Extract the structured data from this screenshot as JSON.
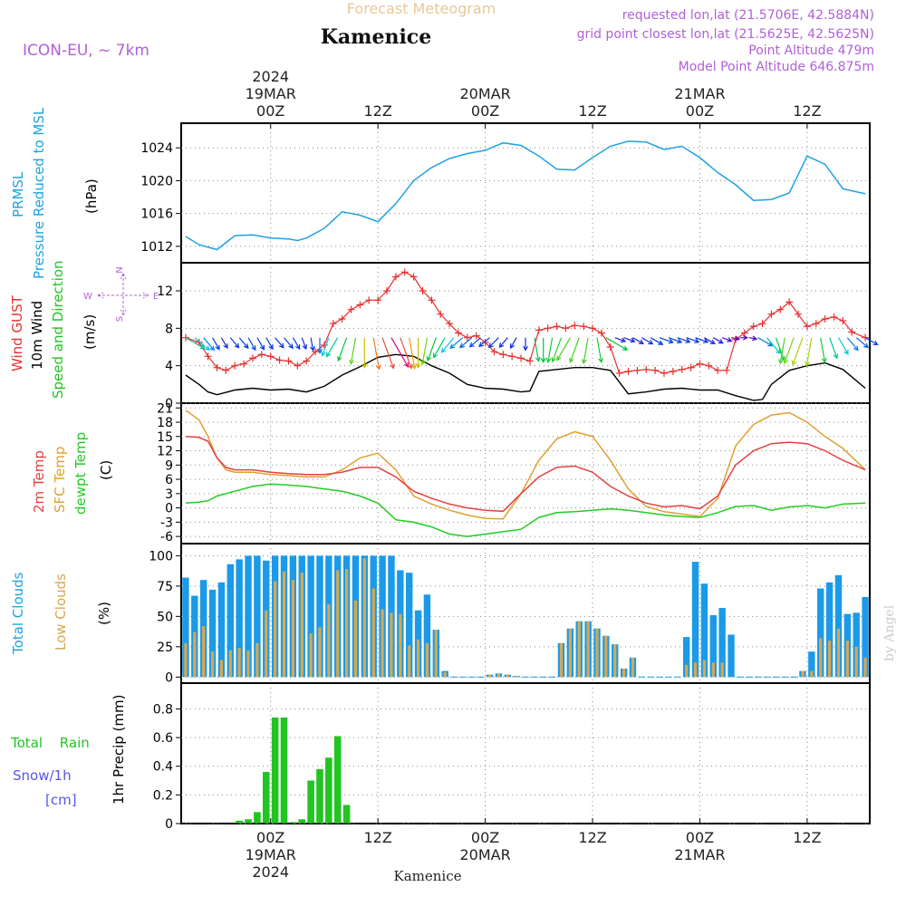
{
  "header": {
    "title": "Kamenice",
    "subtitle": "Forecast Meteogram",
    "model": "ICON-EU, ~ 7km",
    "requested": "requested lon,lat (21.5706E, 42.5884N)",
    "gridpoint": "grid point closest lon,lat (21.5625E, 42.5625N)",
    "point_alt": "Point Altitude 479m",
    "model_alt": "Model Point Altitude 646.875m",
    "footer": "Kamenice",
    "watermark": "by Angel"
  },
  "colors": {
    "pressure": "#1fa2e0",
    "gust": "#e83030",
    "wind10": "#000000",
    "t2m": "#e84040",
    "sfc": "#e0a030",
    "dewpt": "#22cc22",
    "total_cloud": "#1a9ae8",
    "low_cloud": "#d8a850",
    "rain": "#22c422",
    "snow": "#5555ee",
    "purple": "#b060d8"
  },
  "time_axis": {
    "top_labels": [
      {
        "hour": 0,
        "lines": [
          "2024",
          "19MAR",
          "00Z"
        ]
      },
      {
        "hour": 12,
        "lines": [
          "12Z"
        ]
      },
      {
        "hour": 24,
        "lines": [
          "20MAR",
          "00Z"
        ]
      },
      {
        "hour": 36,
        "lines": [
          "12Z"
        ]
      },
      {
        "hour": 48,
        "lines": [
          "21MAR",
          "00Z"
        ]
      },
      {
        "hour": 60,
        "lines": [
          "12Z"
        ]
      }
    ],
    "bottom_labels": [
      {
        "hour": 0,
        "lines": [
          "00Z",
          "19MAR",
          "2024"
        ]
      },
      {
        "hour": 12,
        "lines": [
          "12Z"
        ]
      },
      {
        "hour": 24,
        "lines": [
          "00Z",
          "20MAR"
        ]
      },
      {
        "hour": 36,
        "lines": [
          "12Z"
        ]
      },
      {
        "hour": 48,
        "lines": [
          "00Z",
          "21MAR"
        ]
      },
      {
        "hour": 60,
        "lines": [
          "12Z"
        ]
      }
    ]
  },
  "panels": {
    "pressure": {
      "labels": [
        "PRMSL",
        "Pressure Reduced to MSL"
      ],
      "unit": "(hPa)",
      "ticks": [
        "1012",
        "1016",
        "1020",
        "1024"
      ]
    },
    "wind": {
      "label_gust": "Wind GUST",
      "label_10m": "10m Wind",
      "label_speed": "Speed and Direction",
      "unit": "(m/s)",
      "ticks": [
        "0",
        "4",
        "8",
        "12"
      ],
      "compass_n": "N",
      "compass_s": "S",
      "compass_w": "W",
      "compass_e": "E"
    },
    "temp": {
      "label_2m": "2m Temp",
      "label_sfc": "SFC Temp",
      "label_dewpt": "dewpt Temp",
      "unit": "(C)",
      "ticks": [
        "-6",
        "-3",
        "0",
        "3",
        "6",
        "9",
        "12",
        "15",
        "18",
        "21"
      ]
    },
    "clouds": {
      "label_total": "Total Clouds",
      "label_low": "Low Clouds",
      "unit": "(%)",
      "ticks": [
        "0",
        "25",
        "50",
        "75",
        "100"
      ]
    },
    "precip": {
      "label_rain": "Total Rain",
      "label_snow": "Snow/1h",
      "label_cm": "[cm]",
      "unit": "1hr Precip (mm)",
      "ticks": [
        "0",
        "0.2",
        "0.4",
        "0.6",
        "0.8"
      ]
    }
  },
  "chart_data": [
    {
      "type": "line",
      "name": "PRMSL",
      "ylim": [
        1010,
        1027
      ],
      "x": [
        -9.5,
        -8,
        -6,
        -4,
        -2,
        0,
        2,
        3,
        4,
        6,
        8,
        10,
        12,
        14,
        16,
        18,
        20,
        22,
        24,
        26,
        28,
        30,
        32,
        34,
        36,
        38,
        40,
        42,
        44,
        46,
        48,
        50,
        52,
        54,
        56,
        58,
        60,
        62,
        64,
        66.5
      ],
      "values": [
        1013.2,
        1012.2,
        1011.6,
        1013.3,
        1013.4,
        1013.0,
        1012.9,
        1012.7,
        1013.0,
        1014.2,
        1016.2,
        1015.8,
        1015.0,
        1017.2,
        1020.0,
        1021.6,
        1022.7,
        1023.3,
        1023.7,
        1024.6,
        1024.3,
        1023.0,
        1021.4,
        1021.3,
        1022.8,
        1024.2,
        1024.8,
        1024.7,
        1023.8,
        1024.2,
        1022.8,
        1021.0,
        1019.5,
        1017.6,
        1017.7,
        1018.5,
        1023.0,
        1022.0,
        1019.0,
        1018.4
      ]
    },
    {
      "type": "line",
      "name": "Wind GUST",
      "ylim": [
        0,
        15
      ],
      "x": [
        -9.5,
        -8,
        -7,
        -6,
        -5,
        -4,
        -3,
        -2,
        -1,
        0,
        1,
        2,
        3,
        4,
        5,
        6,
        7,
        8,
        9,
        10,
        11,
        12,
        13,
        14,
        15,
        16,
        17,
        18,
        19,
        20,
        21,
        22,
        23,
        24,
        25,
        26,
        27,
        28,
        29,
        30,
        31,
        32,
        33,
        34,
        35,
        36,
        37,
        38,
        39,
        40,
        41,
        42,
        43,
        44,
        45,
        46,
        47,
        48,
        49,
        50,
        51,
        52,
        53,
        54,
        55,
        56,
        57,
        58,
        59,
        60,
        61,
        62,
        63,
        64,
        65,
        66.5
      ],
      "values": [
        7.0,
        6.5,
        5.0,
        3.8,
        3.5,
        4.0,
        4.2,
        4.8,
        5.2,
        5.0,
        4.6,
        4.5,
        4.0,
        4.5,
        5.5,
        6.2,
        8.5,
        9.0,
        10.0,
        10.5,
        11.0,
        11.0,
        12.0,
        13.5,
        14.0,
        13.5,
        12.0,
        11.0,
        9.5,
        8.5,
        7.5,
        7.0,
        7.2,
        6.5,
        5.5,
        5.2,
        5.0,
        4.8,
        4.5,
        7.8,
        8.0,
        8.2,
        8.0,
        8.3,
        8.2,
        8.0,
        7.5,
        6.0,
        3.2,
        3.4,
        3.5,
        3.6,
        3.5,
        3.2,
        3.4,
        3.6,
        3.8,
        4.2,
        4.0,
        3.5,
        3.5,
        6.8,
        7.5,
        8.2,
        8.5,
        9.5,
        10.0,
        10.8,
        9.5,
        8.2,
        8.5,
        9.0,
        9.2,
        8.8,
        7.6,
        7.0
      ]
    },
    {
      "type": "line",
      "name": "10m Wind",
      "ylim": [
        0,
        15
      ],
      "x": [
        -9.5,
        -8,
        -7,
        -6,
        -4,
        -2,
        0,
        2,
        4,
        6,
        8,
        10,
        12,
        14,
        16,
        18,
        20,
        22,
        24,
        26,
        28,
        29,
        30,
        32,
        34,
        36,
        38,
        40,
        42,
        44,
        46,
        48,
        50,
        52,
        54,
        55,
        56,
        58,
        60,
        62,
        64,
        66.5
      ],
      "values": [
        3.0,
        2.0,
        1.2,
        0.9,
        1.4,
        1.6,
        1.4,
        1.5,
        1.2,
        1.8,
        3.0,
        3.9,
        4.9,
        5.2,
        5.0,
        4.0,
        3.2,
        2.0,
        1.6,
        1.5,
        1.2,
        1.3,
        3.4,
        3.6,
        3.8,
        3.8,
        3.5,
        1.0,
        1.2,
        1.5,
        1.6,
        1.4,
        1.4,
        0.8,
        0.3,
        0.4,
        2.0,
        3.5,
        4.0,
        4.3,
        3.6,
        1.6
      ]
    },
    {
      "type": "scatter",
      "name": "Wind arrows",
      "ylim": [
        0,
        15
      ],
      "x": [
        -9.5,
        -8.5,
        -7.5,
        -6.5,
        -5.5,
        -4.5,
        -3.5,
        -2.5,
        -1.5,
        -0.5,
        0.5,
        1.5,
        2.5,
        3.5,
        4.5,
        5.5,
        6.5,
        7.5,
        8.5,
        9.5,
        10.5,
        11.5,
        12.5,
        13.5,
        14.5,
        15.5,
        16.5,
        17.5,
        18.5,
        19.5,
        20.5,
        21.5,
        22.5,
        23.5,
        24.5,
        25.5,
        26.5,
        27.5,
        28.5,
        29.5,
        30.5,
        31.5,
        32.5,
        33.5,
        34.5,
        35.5,
        36.5,
        37.5,
        38.5,
        39.5,
        40.5,
        41.5,
        42.5,
        43.5,
        44.5,
        45.5,
        46.5,
        47.5,
        48.5,
        49.5,
        50.5,
        51.5,
        52.5,
        53.5,
        54.5,
        55.5,
        56.5,
        57.5,
        58.5,
        59.5,
        60.5,
        61.5,
        62.5,
        63.5,
        64.5,
        65.5,
        66.5
      ],
      "speeds": [
        3.0,
        2.5,
        2.0,
        1.5,
        1.2,
        1.4,
        1.5,
        1.6,
        1.5,
        1.4,
        1.4,
        1.5,
        1.4,
        1.2,
        1.4,
        1.8,
        2.5,
        3.0,
        3.5,
        3.9,
        4.5,
        4.9,
        5.0,
        5.2,
        5.0,
        4.8,
        4.5,
        4.0,
        3.5,
        3.2,
        2.5,
        2.0,
        1.8,
        1.6,
        1.5,
        1.5,
        1.3,
        1.2,
        1.3,
        3.4,
        3.5,
        3.6,
        3.7,
        3.8,
        3.8,
        3.8,
        3.6,
        3.5,
        1.0,
        1.1,
        1.2,
        1.3,
        1.5,
        1.6,
        1.5,
        1.4,
        1.4,
        1.4,
        1.2,
        1.0,
        0.8,
        0.5,
        0.3,
        0.4,
        2.0,
        2.8,
        3.5,
        3.8,
        4.0,
        4.3,
        4.2,
        3.6,
        3.0,
        2.5,
        2.0,
        1.8,
        1.6
      ],
      "dirs": [
        300,
        310,
        320,
        330,
        330,
        320,
        320,
        330,
        330,
        330,
        320,
        320,
        330,
        340,
        350,
        0,
        20,
        30,
        20,
        10,
        0,
        350,
        340,
        330,
        340,
        350,
        0,
        10,
        20,
        30,
        40,
        50,
        50,
        50,
        50,
        45,
        40,
        30,
        0,
        350,
        0,
        10,
        20,
        30,
        20,
        10,
        350,
        300,
        290,
        290,
        300,
        300,
        300,
        290,
        290,
        290,
        290,
        290,
        300,
        300,
        290,
        280,
        270,
        280,
        300,
        320,
        340,
        10,
        20,
        20,
        10,
        350,
        340,
        330,
        320,
        310,
        300
      ]
    },
    {
      "type": "line",
      "name": "2m Temp",
      "ylim": [
        -7.5,
        22
      ],
      "x": [
        -9.5,
        -8,
        -7,
        -6,
        -5,
        -4,
        -2,
        0,
        2,
        4,
        6,
        8,
        10,
        12,
        14,
        16,
        18,
        20,
        22,
        24,
        26,
        28,
        30,
        32,
        34,
        36,
        38,
        40,
        42,
        44,
        46,
        48,
        50,
        52,
        54,
        56,
        58,
        60,
        62,
        64,
        66.5
      ],
      "values": [
        15.0,
        14.8,
        14.0,
        10.5,
        8.5,
        8.0,
        8.0,
        7.5,
        7.2,
        7.0,
        7.0,
        7.5,
        8.5,
        8.5,
        6.5,
        3.5,
        2.0,
        0.8,
        0.0,
        -0.5,
        -0.7,
        3.0,
        6.5,
        8.5,
        8.8,
        7.5,
        4.5,
        2.5,
        1.0,
        0.2,
        0.5,
        -0.2,
        2.5,
        9.0,
        12.0,
        13.5,
        13.8,
        13.5,
        12.0,
        10.0,
        8.0
      ]
    },
    {
      "type": "line",
      "name": "SFC Temp",
      "ylim": [
        -7.5,
        22
      ],
      "x": [
        -9.5,
        -8,
        -7,
        -6,
        -5,
        -4,
        -2,
        0,
        2,
        4,
        6,
        8,
        10,
        12,
        14,
        16,
        18,
        20,
        22,
        24,
        26,
        28,
        30,
        32,
        34,
        36,
        38,
        40,
        42,
        44,
        46,
        48,
        50,
        52,
        54,
        56,
        58,
        60,
        62,
        64,
        66.5
      ],
      "values": [
        20.5,
        18.5,
        15.0,
        10.5,
        8.0,
        7.5,
        7.5,
        7.0,
        6.8,
        6.5,
        6.5,
        8.0,
        10.5,
        11.5,
        8.0,
        2.5,
        0.8,
        -0.5,
        -1.5,
        -2.2,
        -2.3,
        3.0,
        10.0,
        14.5,
        16.0,
        15.0,
        10.0,
        4.0,
        0.3,
        -0.8,
        -1.3,
        -1.8,
        2.0,
        13.0,
        17.5,
        19.5,
        20.0,
        18.0,
        15.0,
        12.5,
        8.0
      ]
    },
    {
      "type": "line",
      "name": "dewpt Temp",
      "ylim": [
        -7.5,
        22
      ],
      "x": [
        -9.5,
        -8,
        -7,
        -6,
        -5,
        -4,
        -2,
        0,
        2,
        4,
        6,
        8,
        10,
        12,
        14,
        16,
        18,
        20,
        22,
        24,
        26,
        28,
        30,
        32,
        34,
        36,
        38,
        40,
        42,
        44,
        46,
        48,
        50,
        52,
        54,
        56,
        58,
        60,
        62,
        64,
        66.5
      ],
      "values": [
        1.0,
        1.2,
        1.5,
        2.5,
        3.0,
        3.5,
        4.5,
        5.0,
        4.8,
        4.5,
        4.0,
        3.5,
        2.5,
        1.0,
        -2.5,
        -3.0,
        -4.0,
        -5.5,
        -6.0,
        -5.5,
        -5.0,
        -4.5,
        -2.0,
        -1.0,
        -0.8,
        -0.5,
        -0.2,
        -0.5,
        -1.0,
        -1.5,
        -1.8,
        -2.0,
        -1.0,
        0.3,
        0.5,
        -0.5,
        0.2,
        0.5,
        0.0,
        0.8,
        1.0
      ]
    },
    {
      "type": "bar",
      "name": "Total Clouds / Low Clouds",
      "ylim": [
        -5,
        110
      ],
      "x": [
        -9.5,
        -8.5,
        -7.5,
        -6.5,
        -5.5,
        -4.5,
        -3.5,
        -2.5,
        -1.5,
        -0.5,
        0.5,
        1.5,
        2.5,
        3.5,
        4.5,
        5.5,
        6.5,
        7.5,
        8.5,
        9.5,
        10.5,
        11.5,
        12.5,
        13.5,
        14.5,
        15.5,
        16.5,
        17.5,
        18.5,
        19.5,
        20.5,
        21.5,
        22.5,
        23.5,
        24.5,
        25.5,
        26.5,
        27.5,
        28.5,
        29.5,
        30.5,
        31.5,
        32.5,
        33.5,
        34.5,
        35.5,
        36.5,
        37.5,
        38.5,
        39.5,
        40.5,
        41.5,
        42.5,
        43.5,
        44.5,
        45.5,
        46.5,
        47.5,
        48.5,
        49.5,
        50.5,
        51.5,
        52.5,
        53.5,
        54.5,
        55.5,
        56.5,
        57.5,
        58.5,
        59.5,
        60.5,
        61.5,
        62.5,
        63.5,
        64.5,
        65.5,
        66.5
      ],
      "total": [
        82,
        67,
        80,
        72,
        78,
        93,
        97,
        100,
        100,
        96,
        100,
        100,
        100,
        100,
        100,
        100,
        100,
        100,
        100,
        100,
        100,
        100,
        100,
        100,
        88,
        86,
        55,
        68,
        39,
        5,
        0,
        0,
        0,
        0,
        2,
        3,
        2,
        1,
        0,
        0,
        0,
        0,
        28,
        40,
        46,
        46,
        40,
        34,
        27,
        7,
        16,
        0,
        0,
        0,
        0,
        0,
        33,
        95,
        77,
        51,
        57,
        35,
        0,
        0,
        0,
        0,
        0,
        0,
        0,
        5,
        21,
        73,
        78,
        84,
        52,
        53,
        66
      ],
      "low": [
        28,
        37,
        42,
        21,
        14,
        22,
        24,
        22,
        28,
        55,
        79,
        87,
        80,
        86,
        36,
        41,
        60,
        88,
        89,
        63,
        98,
        73,
        56,
        53,
        52,
        26,
        31,
        28,
        39,
        4,
        0,
        0,
        0,
        0,
        2,
        3,
        2,
        1,
        0,
        0,
        0,
        0,
        28,
        40,
        46,
        46,
        40,
        34,
        27,
        7,
        16,
        0,
        0,
        0,
        0,
        0,
        10,
        12,
        14,
        12,
        12,
        0,
        0,
        0,
        0,
        0,
        0,
        0,
        0,
        5,
        5,
        32,
        30,
        40,
        30,
        25,
        16
      ]
    },
    {
      "type": "bar",
      "name": "1hr Precip",
      "ylim": [
        0,
        0.98
      ],
      "x": [
        -3.5,
        -2.5,
        -1.5,
        -0.5,
        0.5,
        1.5,
        2.5,
        3.5,
        4.5,
        5.5,
        6.5,
        7.5,
        8.5
      ],
      "values": [
        0.02,
        0.03,
        0.08,
        0.36,
        0.74,
        0.74,
        0.01,
        0.03,
        0.3,
        0.38,
        0.46,
        0.61,
        0.13
      ]
    }
  ]
}
